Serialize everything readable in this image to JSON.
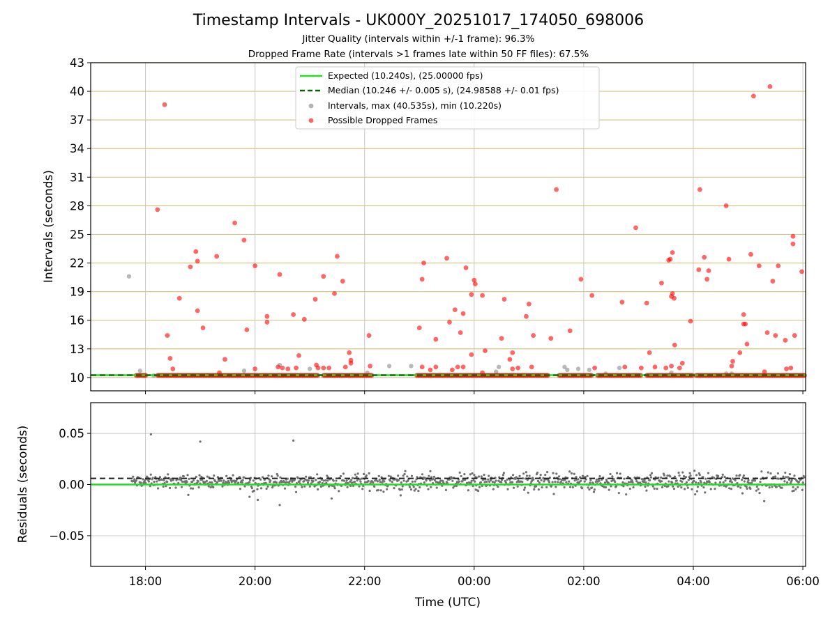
{
  "chart_data": {
    "type": "scatter",
    "title": "Timestamp Intervals - UK000Y_20251017_174050_698006",
    "subtitle_1": "Jitter Quality (intervals within +/-1 frame): 96.3%",
    "subtitle_2": "Dropped Frame Rate (intervals >1 frames late within 50 FF files): 67.5%",
    "xlabel": "Time (UTC)",
    "x_ticks": [
      "18:00",
      "20:00",
      "22:00",
      "00:00",
      "02:00",
      "04:00",
      "06:00"
    ],
    "x_tick_hours": [
      18,
      20,
      22,
      24,
      26,
      28,
      30
    ],
    "xlim_hours": [
      17.0,
      30.05
    ],
    "top_panel": {
      "ylabel": "Intervals (seconds)",
      "ylim": [
        8.6,
        43
      ],
      "y_ticks": [
        "10",
        "13",
        "16",
        "19",
        "22",
        "25",
        "28",
        "31",
        "34",
        "37",
        "40",
        "43"
      ],
      "y_tick_values": [
        10,
        13,
        16,
        19,
        22,
        25,
        28,
        31,
        34,
        37,
        40,
        43
      ],
      "expected_interval": 10.24,
      "median_interval": 10.246,
      "expected_color": "#22dd22",
      "median_color": "#006400",
      "dropped_color": "#ff0000",
      "interval_color": "#808080",
      "grid_color": "#d4c48a",
      "legend": {
        "expected": "Expected (10.240s), (25.00000 fps)",
        "median": "Median (10.246 +/- 0.005 s), (24.98588 +/- 0.01 fps)",
        "intervals": "Intervals, max (40.535s), min (10.220s)",
        "dropped": "Possible Dropped Frames"
      },
      "baseline_dropped_ranges_hours": [
        [
          17.83,
          18.02
        ],
        [
          18.22,
          21.15
        ],
        [
          21.25,
          22.15
        ],
        [
          22.95,
          25.35
        ],
        [
          25.55,
          26.15
        ],
        [
          26.25,
          27.05
        ],
        [
          27.15,
          28.0
        ],
        [
          28.05,
          30.05
        ]
      ],
      "gray_intervals": [
        [
          17.7,
          20.6
        ],
        [
          17.9,
          10.7
        ],
        [
          18.15,
          10.2
        ],
        [
          19.8,
          10.7
        ],
        [
          20.45,
          11.3
        ],
        [
          21.0,
          10.9
        ],
        [
          22.05,
          10.5
        ],
        [
          22.45,
          11.2
        ],
        [
          22.85,
          11.2
        ],
        [
          24.4,
          10.6
        ],
        [
          24.45,
          11.1
        ],
        [
          25.65,
          11.1
        ],
        [
          25.7,
          10.8
        ],
        [
          25.9,
          10.9
        ],
        [
          26.1,
          10.8
        ],
        [
          26.4,
          10.4
        ],
        [
          26.65,
          11.0
        ],
        [
          27.6,
          10.5
        ],
        [
          28.6,
          10.4
        ],
        [
          28.7,
          10.4
        ]
      ],
      "dropped_points": [
        [
          18.35,
          38.6
        ],
        [
          18.22,
          27.6
        ],
        [
          18.4,
          14.4
        ],
        [
          18.45,
          12.0
        ],
        [
          18.5,
          10.9
        ],
        [
          18.62,
          18.3
        ],
        [
          18.82,
          21.6
        ],
        [
          18.92,
          23.2
        ],
        [
          18.95,
          22.2
        ],
        [
          18.95,
          17.0
        ],
        [
          19.05,
          15.2
        ],
        [
          19.3,
          22.7
        ],
        [
          19.35,
          10.5
        ],
        [
          19.45,
          11.9
        ],
        [
          19.63,
          26.2
        ],
        [
          19.8,
          24.4
        ],
        [
          19.85,
          15.0
        ],
        [
          20.0,
          21.7
        ],
        [
          20.0,
          10.9
        ],
        [
          20.22,
          16.4
        ],
        [
          20.22,
          15.8
        ],
        [
          20.45,
          20.8
        ],
        [
          20.42,
          11.1
        ],
        [
          20.5,
          11.0
        ],
        [
          20.6,
          10.9
        ],
        [
          20.7,
          16.6
        ],
        [
          20.75,
          11.0
        ],
        [
          20.8,
          12.3
        ],
        [
          20.9,
          16.1
        ],
        [
          21.1,
          18.2
        ],
        [
          21.12,
          11.3
        ],
        [
          21.15,
          11.0
        ],
        [
          21.25,
          20.6
        ],
        [
          21.25,
          11.0
        ],
        [
          21.35,
          11.0
        ],
        [
          21.45,
          18.8
        ],
        [
          21.5,
          22.7
        ],
        [
          21.6,
          20.1
        ],
        [
          21.65,
          11.1
        ],
        [
          21.72,
          12.6
        ],
        [
          21.75,
          11.8
        ],
        [
          21.75,
          11.5
        ],
        [
          22.08,
          14.4
        ],
        [
          22.1,
          11.2
        ],
        [
          23.0,
          15.2
        ],
        [
          23.05,
          20.3
        ],
        [
          23.08,
          22.0
        ],
        [
          23.05,
          11.1
        ],
        [
          23.2,
          10.8
        ],
        [
          23.3,
          14.0
        ],
        [
          23.3,
          11.1
        ],
        [
          23.5,
          22.5
        ],
        [
          23.55,
          15.8
        ],
        [
          23.6,
          10.8
        ],
        [
          23.65,
          17.1
        ],
        [
          23.7,
          11.1
        ],
        [
          23.75,
          14.7
        ],
        [
          23.8,
          16.7
        ],
        [
          23.8,
          11.1
        ],
        [
          23.85,
          21.5
        ],
        [
          23.95,
          12.4
        ],
        [
          23.95,
          18.7
        ],
        [
          24.0,
          20.2
        ],
        [
          24.02,
          19.8
        ],
        [
          24.15,
          18.6
        ],
        [
          24.15,
          10.5
        ],
        [
          24.2,
          12.8
        ],
        [
          24.5,
          14.1
        ],
        [
          24.55,
          18.2
        ],
        [
          24.65,
          11.9
        ],
        [
          24.7,
          12.6
        ],
        [
          24.7,
          10.9
        ],
        [
          24.8,
          11.0
        ],
        [
          24.95,
          16.4
        ],
        [
          25.0,
          17.7
        ],
        [
          25.08,
          14.4
        ],
        [
          25.05,
          11.1
        ],
        [
          25.4,
          14.1
        ],
        [
          25.5,
          29.7
        ],
        [
          25.75,
          14.9
        ],
        [
          25.95,
          20.3
        ],
        [
          26.15,
          18.6
        ],
        [
          26.2,
          11.0
        ],
        [
          26.7,
          17.9
        ],
        [
          26.75,
          11.1
        ],
        [
          26.95,
          25.7
        ],
        [
          27.05,
          11.0
        ],
        [
          27.15,
          17.8
        ],
        [
          27.2,
          12.6
        ],
        [
          27.3,
          11.1
        ],
        [
          27.42,
          19.9
        ],
        [
          27.5,
          11.0
        ],
        [
          27.55,
          22.3
        ],
        [
          27.58,
          22.4
        ],
        [
          27.6,
          11.2
        ],
        [
          27.6,
          18.5
        ],
        [
          27.62,
          23.1
        ],
        [
          27.62,
          18.8
        ],
        [
          27.65,
          18.3
        ],
        [
          27.66,
          13.4
        ],
        [
          27.75,
          11.0
        ],
        [
          27.8,
          11.5
        ],
        [
          27.95,
          15.9
        ],
        [
          28.1,
          21.3
        ],
        [
          28.12,
          29.7
        ],
        [
          28.2,
          22.6
        ],
        [
          28.25,
          20.3
        ],
        [
          28.28,
          21.2
        ],
        [
          28.6,
          28.0
        ],
        [
          28.65,
          22.4
        ],
        [
          28.7,
          11.2
        ],
        [
          28.72,
          11.7
        ],
        [
          28.85,
          12.6
        ],
        [
          28.92,
          16.6
        ],
        [
          28.92,
          15.6
        ],
        [
          28.95,
          15.6
        ],
        [
          28.98,
          13.5
        ],
        [
          29.05,
          22.9
        ],
        [
          29.1,
          39.5
        ],
        [
          29.2,
          21.7
        ],
        [
          29.3,
          10.6
        ],
        [
          29.35,
          14.7
        ],
        [
          29.4,
          40.5
        ],
        [
          29.45,
          20.1
        ],
        [
          29.5,
          14.4
        ],
        [
          29.55,
          21.7
        ],
        [
          29.68,
          13.9
        ],
        [
          29.7,
          10.9
        ],
        [
          29.78,
          11.0
        ],
        [
          29.82,
          24.8
        ],
        [
          29.82,
          24.0
        ],
        [
          29.85,
          14.4
        ],
        [
          29.98,
          21.1
        ]
      ]
    },
    "bottom_panel": {
      "ylabel": "Residuals (seconds)",
      "ylim": [
        -0.08,
        0.08
      ],
      "y_ticks": [
        "0.05",
        "0.00",
        "−0.05"
      ],
      "y_tick_values": [
        0.05,
        0.0,
        -0.05
      ],
      "median_residual": 0.006,
      "expected_residual": 0.0,
      "residual_color": "#707070",
      "outliers": [
        [
          18.1,
          0.049
        ],
        [
          19.0,
          0.042
        ],
        [
          20.7,
          0.043
        ],
        [
          20.45,
          -0.02
        ],
        [
          20.05,
          -0.015
        ],
        [
          19.9,
          -0.012
        ],
        [
          24.03,
          -0.005
        ],
        [
          23.2,
          0.013
        ]
      ]
    }
  }
}
